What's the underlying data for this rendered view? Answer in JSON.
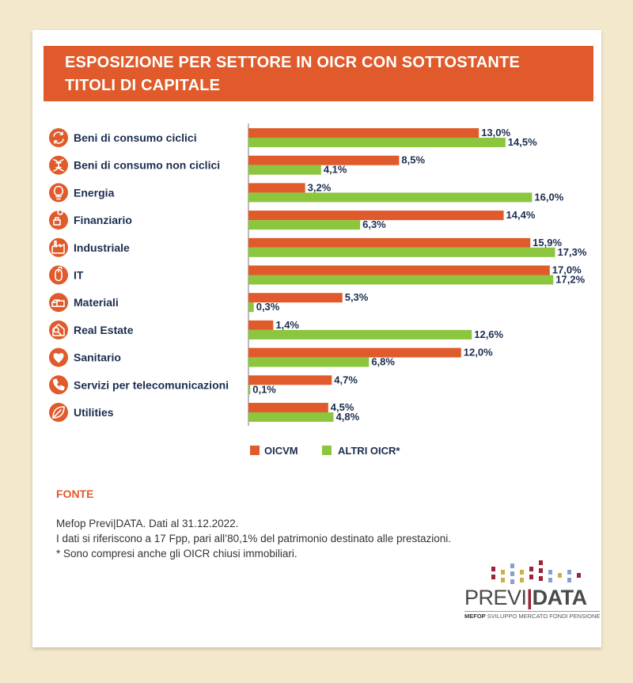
{
  "title": {
    "line1": "ESPOSIZIONE PER SETTORE IN OICR CON SOTTOSTANTE",
    "line2": "TITOLI DI CAPITALE"
  },
  "colors": {
    "oicvm": "#e05a2b",
    "altri": "#8cc63f",
    "text": "#1b2d4f",
    "icon": "#e05a2b"
  },
  "chart_data": {
    "type": "bar",
    "orientation": "horizontal",
    "categories": [
      "Beni di consumo ciclici",
      "Beni di consumo non ciclici",
      "Energia",
      "Finanziario",
      "Industriale",
      "IT",
      "Materiali",
      "Real Estate",
      "Sanitario",
      "Servizi per telecomunicazioni",
      "Utilities"
    ],
    "icons": [
      "cycle-icon",
      "dna-icon",
      "lightbulb-icon",
      "coins-icon",
      "factory-icon",
      "mouse-icon",
      "materials-icon",
      "house-icon",
      "heart-icon",
      "phone-icon",
      "leaf-icon"
    ],
    "series": [
      {
        "name": "OICVM",
        "values": [
          13.0,
          8.5,
          3.2,
          14.4,
          15.9,
          17.0,
          5.3,
          1.4,
          12.0,
          4.7,
          4.5
        ],
        "labels": [
          "13,0%",
          "8,5%",
          "3,2%",
          "14,4%",
          "15,9%",
          "17,0%",
          "5,3%",
          "1,4%",
          "12,0%",
          "4,7%",
          "4,5%"
        ]
      },
      {
        "name": "ALTRI OICR*",
        "values": [
          14.5,
          4.1,
          16.0,
          6.3,
          17.3,
          17.2,
          0.3,
          12.6,
          6.8,
          0.1,
          4.8
        ],
        "labels": [
          "14,5%",
          "4,1%",
          "16,0%",
          "6,3%",
          "17,3%",
          "17,2%",
          "0,3%",
          "12,6%",
          "6,8%",
          "0,1%",
          "4,8%"
        ]
      }
    ],
    "xlim": [
      0,
      18
    ],
    "legend_position": "bottom",
    "grid": false
  },
  "source": {
    "title": "FONTE",
    "lines": [
      "Mefop Previ|DATA. Dati al 31.12.2022.",
      "I dati si riferiscono a 17 Fpp, pari all’80,1% del patrimonio destinato alle prestazioni.",
      "* Sono compresi anche gli OICR chiusi immobiliari."
    ]
  },
  "logo": {
    "previ": "PREVI",
    "data": "DATA",
    "mefop": "MEFOP",
    "tagline": "SVILUPPO MERCATO FONDI PENSIONE"
  }
}
